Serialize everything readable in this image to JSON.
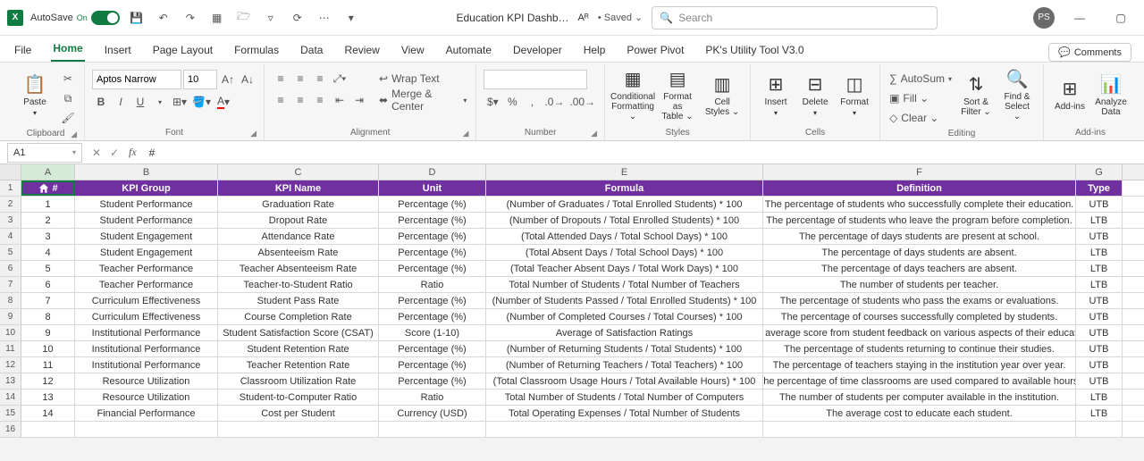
{
  "titlebar": {
    "autosave_label": "AutoSave",
    "autosave_on": "On",
    "doc_title": "Education KPI Dashb…",
    "saved": "• Saved ⌄",
    "search_placeholder": "Search",
    "avatar_initials": "PS"
  },
  "tabs": {
    "file": "File",
    "home": "Home",
    "insert": "Insert",
    "page_layout": "Page Layout",
    "formulas": "Formulas",
    "data": "Data",
    "review": "Review",
    "view": "View",
    "automate": "Automate",
    "developer": "Developer",
    "help": "Help",
    "power_pivot": "Power Pivot",
    "pk_tool": "PK's Utility Tool V3.0",
    "comments": "Comments"
  },
  "ribbon": {
    "clipboard": {
      "label": "Clipboard",
      "paste": "Paste"
    },
    "font": {
      "label": "Font",
      "name": "Aptos Narrow",
      "size": "10"
    },
    "alignment": {
      "label": "Alignment",
      "wrap": "Wrap Text",
      "merge": "Merge & Center"
    },
    "number": {
      "label": "Number"
    },
    "styles": {
      "label": "Styles",
      "cond": "Conditional\nFormatting ⌄",
      "fmt_table": "Format as\nTable ⌄",
      "cell_styles": "Cell\nStyles ⌄"
    },
    "cells": {
      "label": "Cells",
      "insert": "Insert",
      "delete": "Delete",
      "format": "Format"
    },
    "editing": {
      "label": "Editing",
      "autosum": "AutoSum",
      "fill": "Fill ⌄",
      "clear": "Clear ⌄",
      "sort": "Sort &\nFilter ⌄",
      "find": "Find &\nSelect ⌄"
    },
    "addins": {
      "label": "Add-ins",
      "addins": "Add-ins",
      "analyze": "Analyze\nData"
    }
  },
  "fbar": {
    "cell_ref": "A1",
    "formula": "#"
  },
  "columns": [
    "A",
    "B",
    "C",
    "D",
    "E",
    "F",
    "G"
  ],
  "headers": {
    "A": "#",
    "B": "KPI Group",
    "C": "KPI Name",
    "D": "Unit",
    "E": "Formula",
    "F": "Definition",
    "G": "Type"
  },
  "rows": [
    {
      "n": "1",
      "g": "Student Performance",
      "k": "Graduation Rate",
      "u": "Percentage (%)",
      "f": "(Number of Graduates / Total Enrolled Students) * 100",
      "d": "The percentage of students who successfully complete their education.",
      "t": "UTB"
    },
    {
      "n": "2",
      "g": "Student Performance",
      "k": "Dropout Rate",
      "u": "Percentage (%)",
      "f": "(Number of Dropouts / Total Enrolled Students) * 100",
      "d": "The percentage of students who leave the program before completion.",
      "t": "LTB"
    },
    {
      "n": "3",
      "g": "Student Engagement",
      "k": "Attendance Rate",
      "u": "Percentage (%)",
      "f": "(Total Attended Days / Total School Days) * 100",
      "d": "The percentage of days students are present at school.",
      "t": "UTB"
    },
    {
      "n": "4",
      "g": "Student Engagement",
      "k": "Absenteeism Rate",
      "u": "Percentage (%)",
      "f": "(Total Absent Days / Total School Days) * 100",
      "d": "The percentage of days students are absent.",
      "t": "LTB"
    },
    {
      "n": "5",
      "g": "Teacher Performance",
      "k": "Teacher Absenteeism Rate",
      "u": "Percentage (%)",
      "f": "(Total Teacher Absent Days / Total Work Days) * 100",
      "d": "The percentage of days teachers are absent.",
      "t": "LTB"
    },
    {
      "n": "6",
      "g": "Teacher Performance",
      "k": "Teacher-to-Student Ratio",
      "u": "Ratio",
      "f": "Total Number of Students / Total Number of Teachers",
      "d": "The number of students per teacher.",
      "t": "LTB"
    },
    {
      "n": "7",
      "g": "Curriculum Effectiveness",
      "k": "Student Pass Rate",
      "u": "Percentage (%)",
      "f": "(Number of Students Passed / Total Enrolled Students) * 100",
      "d": "The percentage of students who pass the exams or evaluations.",
      "t": "UTB"
    },
    {
      "n": "8",
      "g": "Curriculum Effectiveness",
      "k": "Course Completion Rate",
      "u": "Percentage (%)",
      "f": "(Number of Completed Courses / Total Courses) * 100",
      "d": "The percentage of courses successfully completed by students.",
      "t": "UTB"
    },
    {
      "n": "9",
      "g": "Institutional Performance",
      "k": "Student Satisfaction Score (CSAT)",
      "u": "Score (1-10)",
      "f": "Average of Satisfaction Ratings",
      "d": "The average score from student feedback on various aspects of their education.",
      "t": "UTB"
    },
    {
      "n": "10",
      "g": "Institutional Performance",
      "k": "Student Retention Rate",
      "u": "Percentage (%)",
      "f": "(Number of Returning Students / Total Students) * 100",
      "d": "The percentage of students returning to continue their studies.",
      "t": "UTB"
    },
    {
      "n": "11",
      "g": "Institutional Performance",
      "k": "Teacher Retention Rate",
      "u": "Percentage (%)",
      "f": "(Number of Returning Teachers / Total Teachers) * 100",
      "d": "The percentage of teachers staying in the institution year over year.",
      "t": "UTB"
    },
    {
      "n": "12",
      "g": "Resource Utilization",
      "k": "Classroom Utilization Rate",
      "u": "Percentage (%)",
      "f": "(Total Classroom Usage Hours / Total Available Hours) * 100",
      "d": "The percentage of time classrooms are used compared to available hours.",
      "t": "UTB"
    },
    {
      "n": "13",
      "g": "Resource Utilization",
      "k": "Student-to-Computer Ratio",
      "u": "Ratio",
      "f": "Total Number of Students / Total Number of Computers",
      "d": "The number of students per computer available in the institution.",
      "t": "LTB"
    },
    {
      "n": "14",
      "g": "Financial Performance",
      "k": "Cost per Student",
      "u": "Currency (USD)",
      "f": "Total Operating Expenses / Total Number of Students",
      "d": "The average cost to educate each student.",
      "t": "LTB"
    }
  ],
  "colors": {
    "header_bg": "#7030a0",
    "accent": "#107c41"
  }
}
